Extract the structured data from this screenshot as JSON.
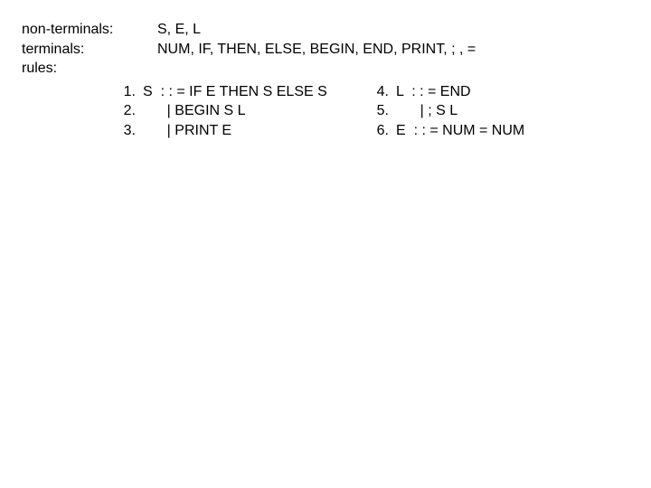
{
  "defs": {
    "nonterminals_label": "non-terminals:",
    "nonterminals_value": "S, E, L",
    "terminals_label": "terminals:",
    "terminals_value": "NUM, IF, THEN, ELSE, BEGIN, END, PRINT, ; , =",
    "rules_label": "rules:"
  },
  "rules_left": [
    {
      "num": "1.",
      "body": "S  : : = IF E THEN S ELSE S"
    },
    {
      "num": "2.",
      "body": "      | BEGIN S L"
    },
    {
      "num": "3.",
      "body": "      | PRINT E"
    }
  ],
  "rules_right": [
    {
      "num": "4.",
      "body": "L  : : = END"
    },
    {
      "num": "5.",
      "body": "      | ; S L"
    },
    {
      "num": "6.",
      "body": "E  : : = NUM = NUM"
    }
  ]
}
